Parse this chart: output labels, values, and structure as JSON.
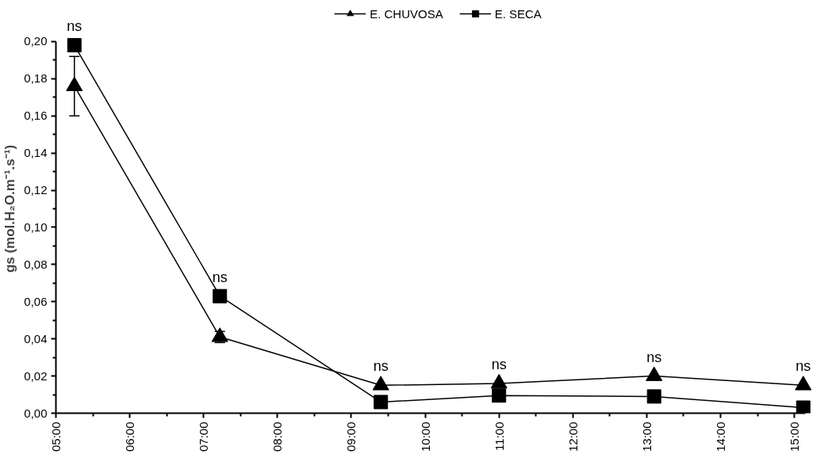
{
  "chart_data": {
    "type": "line",
    "ylabel": "gs (mol.H₂O.m⁻¹.s⁻¹)",
    "x": [
      5.25,
      7.22,
      9.4,
      11.0,
      13.1,
      15.12
    ],
    "series": [
      {
        "name": "E. CHUVOSA",
        "color": "#000000",
        "marker": "triangle",
        "values": [
          0.176,
          0.041,
          0.015,
          0.016,
          0.02,
          0.015
        ],
        "errors": [
          0.016,
          0.003,
          null,
          null,
          null,
          null
        ]
      },
      {
        "name": "E. SECA",
        "color": "#000000",
        "marker": "square",
        "values": [
          0.198,
          0.063,
          0.006,
          0.0095,
          0.009,
          0.003
        ]
      }
    ],
    "xlim": [
      5,
      15.15
    ],
    "ylim": [
      0,
      0.2
    ],
    "xticks": [
      {
        "value": 5,
        "label": "05:00"
      },
      {
        "value": 6,
        "label": "06:00"
      },
      {
        "value": 7,
        "label": "07:00"
      },
      {
        "value": 8,
        "label": "08:00"
      },
      {
        "value": 9,
        "label": "09:00"
      },
      {
        "value": 10,
        "label": "10:00"
      },
      {
        "value": 11,
        "label": "11:00"
      },
      {
        "value": 12,
        "label": "12:00"
      },
      {
        "value": 13,
        "label": "13:00"
      },
      {
        "value": 14,
        "label": "14:00"
      },
      {
        "value": 15,
        "label": "15:00"
      }
    ],
    "yticks": [
      {
        "value": 0,
        "label": "0,00"
      },
      {
        "value": 0.02,
        "label": "0,02"
      },
      {
        "value": 0.04,
        "label": "0,04"
      },
      {
        "value": 0.06,
        "label": "0,06"
      },
      {
        "value": 0.08,
        "label": "0,08"
      },
      {
        "value": 0.1,
        "label": "0,10"
      },
      {
        "value": 0.12,
        "label": "0,12"
      },
      {
        "value": 0.14,
        "label": "0,14"
      },
      {
        "value": 0.16,
        "label": "0,16"
      },
      {
        "value": 0.18,
        "label": "0,18"
      },
      {
        "value": 0.2,
        "label": "0,20"
      }
    ],
    "annotations": [
      {
        "text": "ns",
        "x": 5.25,
        "y": 0.198
      },
      {
        "text": "ns",
        "x": 7.22,
        "y": 0.063
      },
      {
        "text": "ns",
        "x": 9.4,
        "y": 0.015
      },
      {
        "text": "ns",
        "x": 11.0,
        "y": 0.016
      },
      {
        "text": "ns",
        "x": 13.1,
        "y": 0.02
      },
      {
        "text": "ns",
        "x": 15.12,
        "y": 0.015
      }
    ],
    "grid": false,
    "legend": "top",
    "line_style": "solid"
  }
}
